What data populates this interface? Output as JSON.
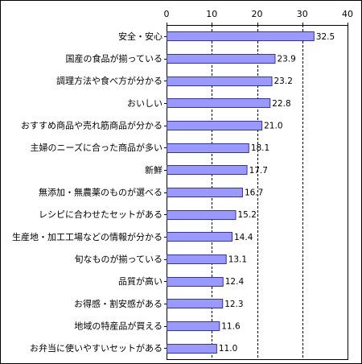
{
  "chart_data": {
    "type": "bar",
    "orientation": "horizontal",
    "categories": [
      "安全・安心",
      "国産の食品が揃っている",
      "調理方法や食べ方が分かる",
      "おいしい",
      "おすすめ商品や売れ筋商品が分かる",
      "主婦のニーズに合った商品が多い",
      "新鮮",
      "無添加・無農薬のものが選べる",
      "レシピに合わせたセットがある",
      "生産地・加工工場などの情報が分かる",
      "旬なものが揃っている",
      "品質が高い",
      "お得感・割安感がある",
      "地域の特産品が買える",
      "お弁当に使いやすいセットがある"
    ],
    "values": [
      32.5,
      23.9,
      23.2,
      22.8,
      21.0,
      18.1,
      17.7,
      16.7,
      15.2,
      14.4,
      13.1,
      12.4,
      12.3,
      11.6,
      11.0
    ],
    "value_labels": [
      "32.5",
      "23.9",
      "23.2",
      "22.8",
      "21.0",
      "18.1",
      "17.7",
      "16.7",
      "15.2",
      "14.4",
      "13.1",
      "12.4",
      "12.3",
      "11.6",
      "11.0"
    ],
    "x_ticks": [
      "0",
      "10",
      "20",
      "30",
      "40"
    ],
    "xlim": [
      0,
      40
    ],
    "grid": "dashed vertical",
    "bar_color": "#9999ff",
    "bar_border": "#333399"
  }
}
